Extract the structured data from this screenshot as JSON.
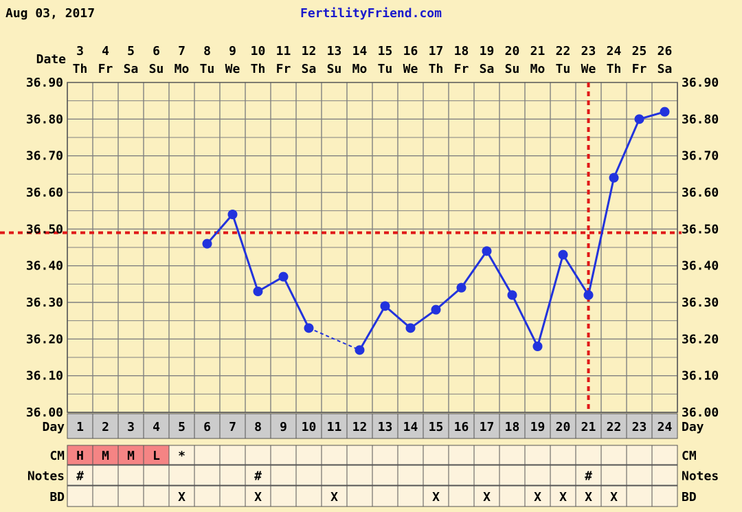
{
  "header": {
    "date_text": "Aug 03, 2017",
    "site": "FertilityFriend.com"
  },
  "row_labels": {
    "date": "Date",
    "day": "Day",
    "cm": "CM",
    "notes": "Notes",
    "bd": "BD"
  },
  "colors": {
    "background": "#fbf0c0",
    "grid": "#808080",
    "line": "#2233dd",
    "coverline": "#e01818",
    "header_link": "#1a1acc",
    "day_row": "#cccccc",
    "cm_fill": "#f58484",
    "cell_fill": "#fdf3dd"
  },
  "chart_data": {
    "type": "line",
    "x": [
      1,
      2,
      3,
      4,
      5,
      6,
      7,
      8,
      9,
      10,
      11,
      12,
      13,
      14,
      15,
      16,
      17,
      18,
      19,
      20,
      21,
      22,
      23,
      24
    ],
    "dates": [
      "3",
      "4",
      "5",
      "6",
      "7",
      "8",
      "9",
      "10",
      "11",
      "12",
      "13",
      "14",
      "15",
      "16",
      "17",
      "18",
      "19",
      "20",
      "21",
      "22",
      "23",
      "24",
      "25",
      "26"
    ],
    "weekdays": [
      "Th",
      "Fr",
      "Sa",
      "Su",
      "Mo",
      "Tu",
      "We",
      "Th",
      "Fr",
      "Sa",
      "Su",
      "Mo",
      "Tu",
      "We",
      "Th",
      "Fr",
      "Sa",
      "Su",
      "Mo",
      "Tu",
      "We",
      "Th",
      "Fr",
      "Sa"
    ],
    "series": [
      {
        "values": [
          null,
          null,
          null,
          null,
          null,
          36.46,
          36.54,
          36.33,
          36.37,
          36.23,
          null,
          36.17,
          36.29,
          36.23,
          36.28,
          36.34,
          36.44,
          36.32,
          36.18,
          36.43,
          36.32,
          36.64,
          36.8,
          36.82
        ]
      }
    ],
    "ylim": [
      36.0,
      36.9
    ],
    "yticks": [
      "36.00",
      "36.10",
      "36.20",
      "36.30",
      "36.40",
      "36.50",
      "36.60",
      "36.70",
      "36.80",
      "36.90"
    ],
    "coverline_temp": 36.49,
    "ovulation_day": 21,
    "grid": true
  },
  "rows": {
    "cm": [
      "H",
      "M",
      "M",
      "L",
      "*",
      "",
      "",
      "",
      "",
      "",
      "",
      "",
      "",
      "",
      "",
      "",
      "",
      "",
      "",
      "",
      "",
      "",
      "",
      ""
    ],
    "notes": [
      "#",
      "",
      "",
      "",
      "",
      "",
      "",
      "#",
      "",
      "",
      "",
      "",
      "",
      "",
      "",
      "",
      "",
      "",
      "",
      "",
      "#",
      "",
      "",
      ""
    ],
    "bd": [
      "",
      "",
      "",
      "",
      "X",
      "",
      "",
      "X",
      "",
      "",
      "X",
      "",
      "",
      "",
      "X",
      "",
      "X",
      "",
      "X",
      "X",
      "X",
      "X",
      "",
      ""
    ]
  }
}
